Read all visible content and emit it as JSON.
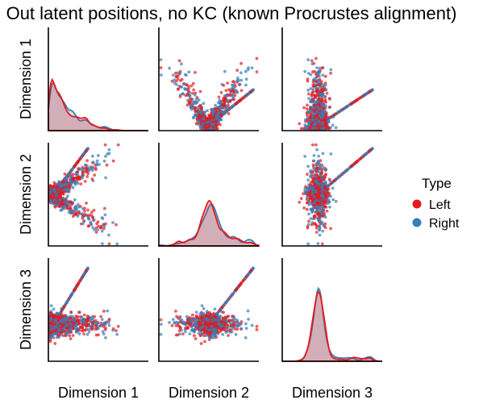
{
  "title": "Out latent positions, no KC (known Procrustes alignment)",
  "colors": {
    "Left": "#e41a1c",
    "Right": "#377eb8"
  },
  "legend": {
    "title": "Type",
    "placement": "right",
    "entries": [
      "Left",
      "Right"
    ]
  },
  "chart_data": {
    "type": "scatter",
    "subtype": "pairplot",
    "title": "Out latent positions, no KC (known Procrustes alignment)",
    "variables": [
      "Dimension 1",
      "Dimension 2",
      "Dimension 3"
    ],
    "hue": "Type",
    "hue_levels": [
      "Left",
      "Right"
    ],
    "diagonal": "kde",
    "grid": false,
    "tick_labels": false,
    "diag_kde": [
      {
        "variable": "Dimension 1",
        "mode": 0.04,
        "shape": "right-skewed, long right tail",
        "range": [
          0.0,
          1.0
        ]
      },
      {
        "variable": "Dimension 2",
        "mode": 0.5,
        "shape": "sharp symmetric peak",
        "range": [
          0.0,
          1.0
        ]
      },
      {
        "variable": "Dimension 3",
        "mode": 0.36,
        "shape": "sharp peak, small secondary bump near 0.6",
        "range": [
          0.0,
          1.0
        ]
      }
    ],
    "scatter_description": [
      {
        "x": "Dimension 2",
        "y": "Dimension 1",
        "pattern": "V-shape opening upward"
      },
      {
        "x": "Dimension 3",
        "y": "Dimension 1",
        "pattern": "dense vertical cluster with diagonal arm to the right"
      },
      {
        "x": "Dimension 1",
        "y": "Dimension 2",
        "pattern": "sideways V opening to the right"
      },
      {
        "x": "Dimension 3",
        "y": "Dimension 2",
        "pattern": "diagonal band with arm toward upper right"
      },
      {
        "x": "Dimension 1",
        "y": "Dimension 3",
        "pattern": "dense cluster at left with spike upward"
      },
      {
        "x": "Dimension 2",
        "y": "Dimension 3",
        "pattern": "band descending then arm rising to the right"
      }
    ]
  }
}
